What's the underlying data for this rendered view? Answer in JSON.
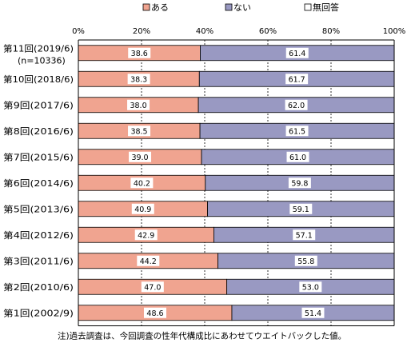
{
  "chart_data": {
    "type": "bar",
    "orientation": "horizontal",
    "stacked": true,
    "categories": [
      "第11回(2019/6)",
      "第10回(2018/6)",
      "第9回(2017/6)",
      "第8回(2016/6)",
      "第7回(2015/6)",
      "第6回(2014/6)",
      "第5回(2013/6)",
      "第4回(2012/6)",
      "第3回(2011/6)",
      "第2回(2010/6)",
      "第1回(2002/9)"
    ],
    "category_sublabels": [
      "(n=10336)",
      "",
      "",
      "",
      "",
      "",
      "",
      "",
      "",
      "",
      ""
    ],
    "series": [
      {
        "name": "ある",
        "color": "#f0a490",
        "values": [
          38.6,
          38.3,
          38.0,
          38.5,
          39.0,
          40.2,
          40.9,
          42.9,
          44.2,
          47.0,
          48.6
        ],
        "labels": [
          "38.6",
          "38.3",
          "38.0",
          "38.5",
          "39.0",
          "40.2",
          "40.9",
          "42.9",
          "44.2",
          "47.0",
          "48.6"
        ]
      },
      {
        "name": "ない",
        "color": "#9999c2",
        "values": [
          61.4,
          61.7,
          62.0,
          61.5,
          61.0,
          59.8,
          59.1,
          57.1,
          55.8,
          53.0,
          51.4
        ],
        "labels": [
          "61.4",
          "61.7",
          "62.0",
          "61.5",
          "61.0",
          "59.8",
          "59.1",
          "57.1",
          "55.8",
          "53.0",
          "51.4"
        ]
      },
      {
        "name": "無回答",
        "color": "#ffffff",
        "values": [
          0,
          0,
          0,
          0,
          0,
          0,
          0,
          0,
          0,
          0,
          0
        ]
      }
    ],
    "xaxis": {
      "ticks": [
        "0%",
        "20%",
        "40%",
        "60%",
        "80%",
        "100%"
      ],
      "range": [
        0,
        100
      ]
    },
    "grid": true,
    "legend_position": "top",
    "note": "注)過去調査は、今回調査の性年代構成比にあわせてウエイトバックした値。"
  }
}
